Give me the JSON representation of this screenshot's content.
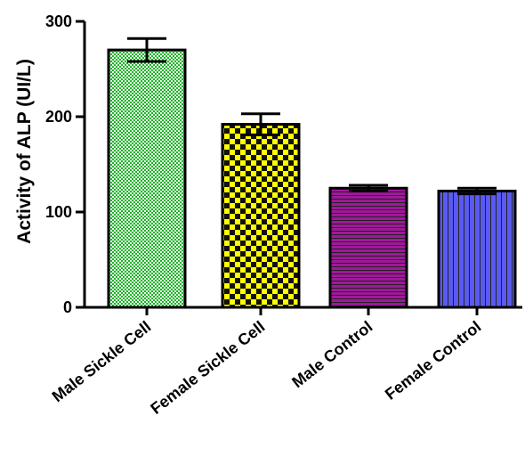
{
  "chart_data": {
    "type": "bar",
    "title": "",
    "xlabel": "",
    "ylabel": "Activity of ALP (UI/L)",
    "ylim": [
      0,
      300
    ],
    "yticks": [
      0,
      100,
      200,
      300
    ],
    "grid": false,
    "categories": [
      "Male Sickle Cell",
      "Female Sickle Cell",
      "Male Control",
      "Female Control"
    ],
    "values": [
      270,
      192,
      125,
      122
    ],
    "error": [
      12,
      11,
      3,
      3
    ],
    "colors": [
      "#1fb02a",
      "#ffff00",
      "#a0189a",
      "#5a5af2"
    ],
    "patterns": [
      "fine-check",
      "check",
      "horizontal-lines",
      "vertical-lines"
    ]
  }
}
